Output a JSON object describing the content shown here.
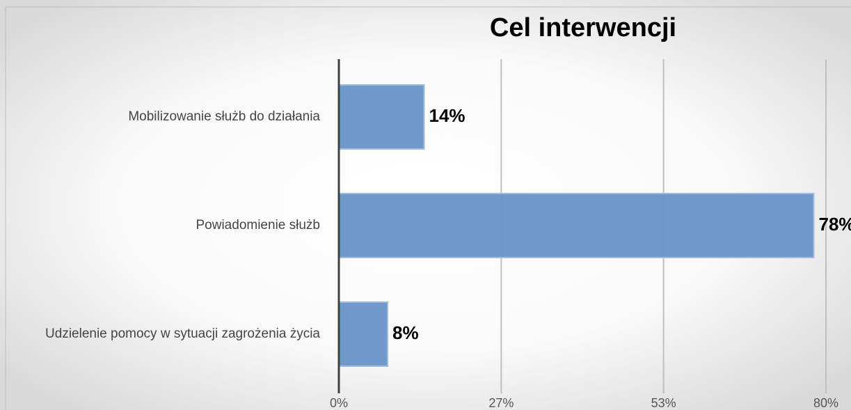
{
  "chart_data": {
    "type": "bar",
    "orientation": "horizontal",
    "title": "Cel interwencji",
    "categories": [
      "Mobilizowanie służb do działania",
      "Powiadomienie służb",
      "Udzielenie pomocy w sytuacji zagrożenia życia"
    ],
    "values": [
      14,
      78,
      8
    ],
    "value_labels": [
      "14%",
      "78%",
      "8%"
    ],
    "color": "#6a96c8",
    "xlim": [
      0,
      80
    ],
    "xticks": [
      {
        "value": 0,
        "label": "0%"
      },
      {
        "value": 26.67,
        "label": "27%"
      },
      {
        "value": 53.33,
        "label": "53%"
      },
      {
        "value": 80,
        "label": "80%"
      }
    ],
    "grid": true
  }
}
